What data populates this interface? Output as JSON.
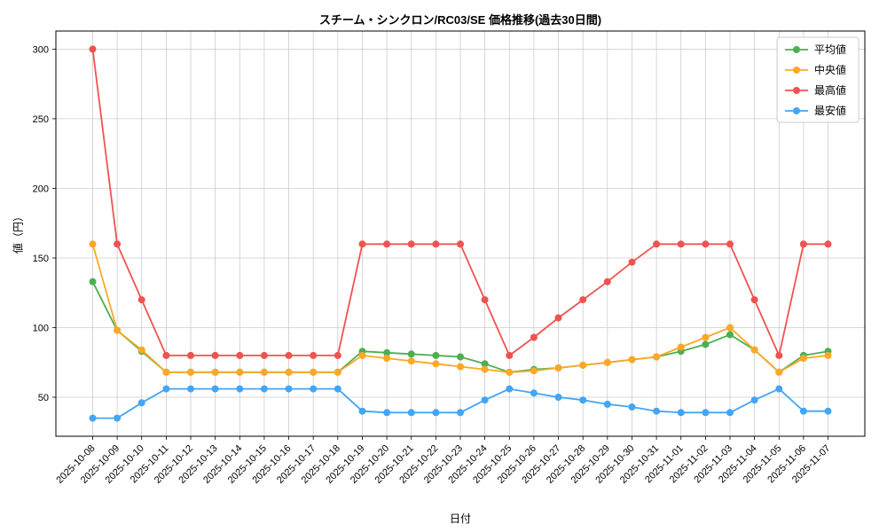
{
  "chart_data": {
    "type": "line",
    "title": "スチーム・シンクロン/RC03/SE 価格推移(過去30日間)",
    "xlabel": "日付",
    "ylabel": "値（円）",
    "grid": true,
    "legend_position": "upper right",
    "yticks": [
      50,
      100,
      150,
      200,
      250,
      300
    ],
    "ylim": [
      22,
      313
    ],
    "x": [
      "2025-10-08",
      "2025-10-09",
      "2025-10-10",
      "2025-10-11",
      "2025-10-12",
      "2025-10-13",
      "2025-10-14",
      "2025-10-15",
      "2025-10-16",
      "2025-10-17",
      "2025-10-18",
      "2025-10-19",
      "2025-10-20",
      "2025-10-21",
      "2025-10-22",
      "2025-10-23",
      "2025-10-24",
      "2025-10-25",
      "2025-10-26",
      "2025-10-27",
      "2025-10-28",
      "2025-10-29",
      "2025-10-30",
      "2025-10-31",
      "2025-11-01",
      "2025-11-02",
      "2025-11-03",
      "2025-11-04",
      "2025-11-05",
      "2025-11-06",
      "2025-11-07"
    ],
    "series": [
      {
        "id": "average",
        "name": "平均値",
        "color": "#4CAF50",
        "values": [
          133,
          98,
          83,
          68,
          68,
          68,
          68,
          68,
          68,
          68,
          68,
          83,
          82,
          81,
          80,
          79,
          74,
          68,
          70,
          71,
          73,
          75,
          77,
          79,
          83,
          88,
          95,
          84,
          68,
          80,
          83
        ]
      },
      {
        "id": "median",
        "name": "中央値",
        "color": "#FFA726",
        "values": [
          160,
          98,
          84,
          68,
          68,
          68,
          68,
          68,
          68,
          68,
          68,
          80,
          78,
          76,
          74,
          72,
          70,
          68,
          69,
          71,
          73,
          75,
          77,
          79,
          86,
          93,
          100,
          84,
          68,
          78,
          80
        ]
      },
      {
        "id": "max",
        "name": "最高値",
        "color": "#EF5350",
        "values": [
          300,
          160,
          120,
          80,
          80,
          80,
          80,
          80,
          80,
          80,
          80,
          160,
          160,
          160,
          160,
          160,
          120,
          80,
          93,
          107,
          120,
          133,
          147,
          160,
          160,
          160,
          160,
          120,
          80,
          160,
          160
        ]
      },
      {
        "id": "min",
        "name": "最安値",
        "color": "#42A5F5",
        "values": [
          35,
          35,
          46,
          56,
          56,
          56,
          56,
          56,
          56,
          56,
          56,
          40,
          39,
          39,
          39,
          39,
          48,
          56,
          53,
          50,
          48,
          45,
          43,
          40,
          39,
          39,
          39,
          48,
          56,
          40,
          40
        ]
      }
    ]
  }
}
